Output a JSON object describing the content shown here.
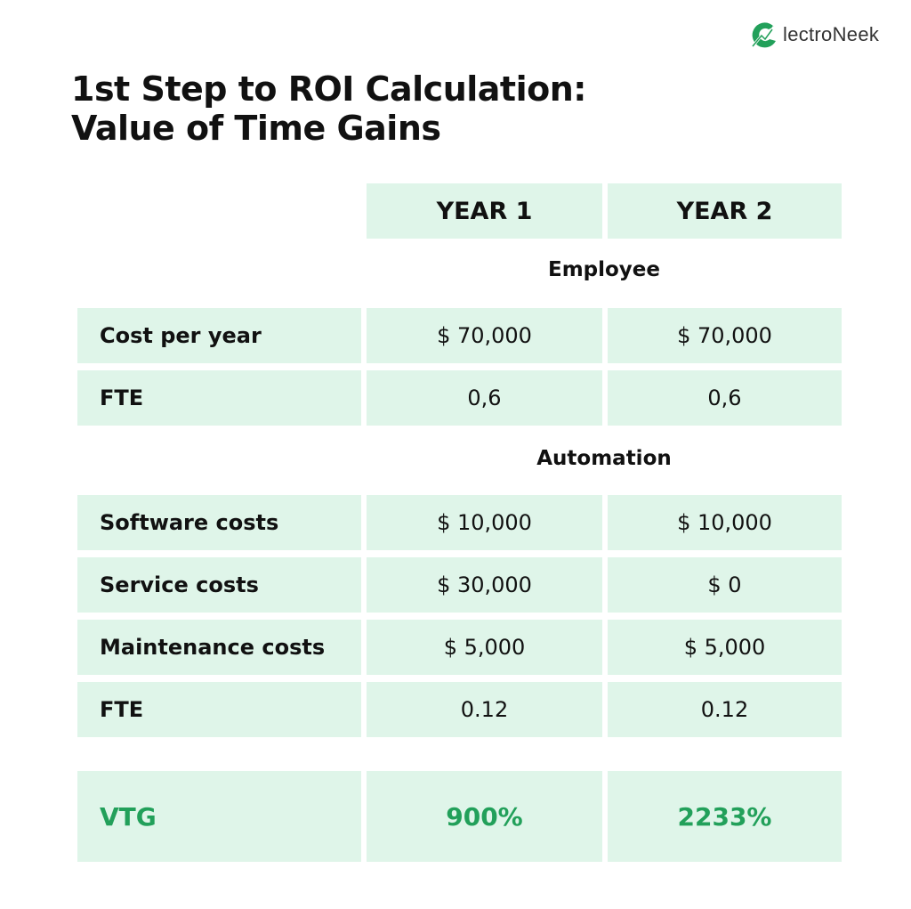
{
  "brand": {
    "logo_text": "lectroNeek",
    "logo_letter": "e",
    "accent_color": "#22a05a",
    "cell_color": "#dff5e9"
  },
  "title": {
    "line1": "1st Step to ROI Calculation:",
    "line2": "Value of Time Gains"
  },
  "table": {
    "columns": [
      "YEAR 1",
      "YEAR 2"
    ],
    "sections": [
      {
        "label": "Employee",
        "rows": [
          {
            "label": "Cost per year",
            "year1": "$ 70,000",
            "year2": "$ 70,000"
          },
          {
            "label": "FTE",
            "year1": "0,6",
            "year2": "0,6"
          }
        ]
      },
      {
        "label": "Automation",
        "rows": [
          {
            "label": "Software costs",
            "year1": "$ 10,000",
            "year2": "$ 10,000"
          },
          {
            "label": "Service costs",
            "year1": "$ 30,000",
            "year2": "$ 0"
          },
          {
            "label": "Maintenance costs",
            "year1": "$ 5,000",
            "year2": "$ 5,000"
          },
          {
            "label": "FTE",
            "year1": "0.12",
            "year2": "0.12"
          }
        ]
      }
    ],
    "total": {
      "label": "VTG",
      "year1": "900%",
      "year2": "2233%"
    }
  }
}
